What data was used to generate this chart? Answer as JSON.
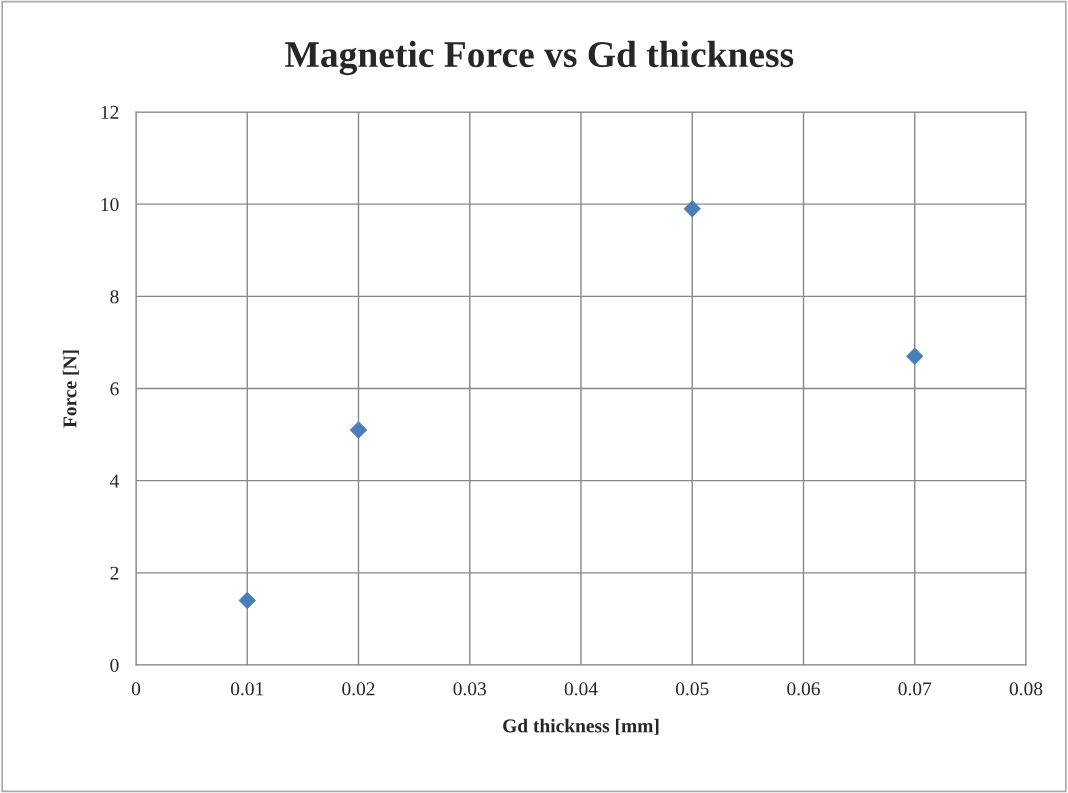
{
  "chart_data": {
    "type": "scatter",
    "title": "Magnetic Force vs Gd thickness",
    "xlabel": "Gd thickness [mm]",
    "ylabel": "Force [N]",
    "x": [
      0.01,
      0.02,
      0.05,
      0.07
    ],
    "series": [
      {
        "color": "#4a7ebb",
        "values": [
          1.4,
          5.1,
          9.9,
          6.7
        ]
      }
    ],
    "xlim": [
      0,
      0.08
    ],
    "xticks": [
      0,
      0.01,
      0.02,
      0.03,
      0.04,
      0.05,
      0.06,
      0.07,
      0.08
    ],
    "ylim": [
      0,
      12
    ],
    "yticks": [
      0,
      2,
      4,
      6,
      8,
      10,
      12
    ],
    "grid": true,
    "marker": "diamond",
    "legend": false
  }
}
